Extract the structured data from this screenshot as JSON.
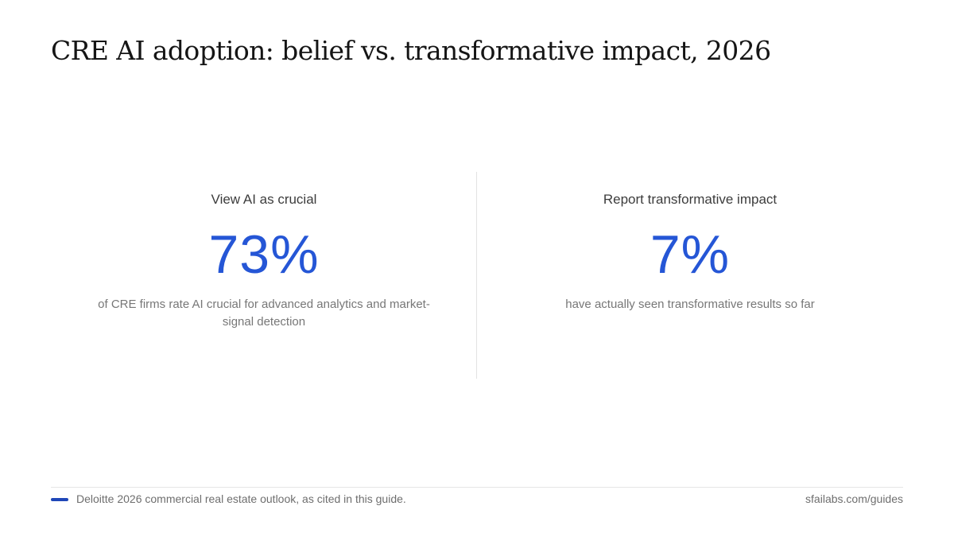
{
  "chart_data": {
    "type": "table",
    "title": "CRE AI adoption: belief vs. transformative impact, 2026",
    "stats": [
      {
        "label": "View AI as crucial",
        "value": 73,
        "display": "73%",
        "description": "of CRE firms rate AI crucial for advanced analytics and market-signal detection"
      },
      {
        "label": "Report transformative impact",
        "value": 7,
        "display": "7%",
        "description": "have actually seen transformative results so far"
      }
    ]
  },
  "footer": {
    "source": "Deloitte 2026 commercial real estate outlook, as cited in this guide.",
    "site": "sfailabs.com/guides"
  },
  "colors": {
    "accent": "#2556d6",
    "source_mark": "#1f47b8"
  }
}
